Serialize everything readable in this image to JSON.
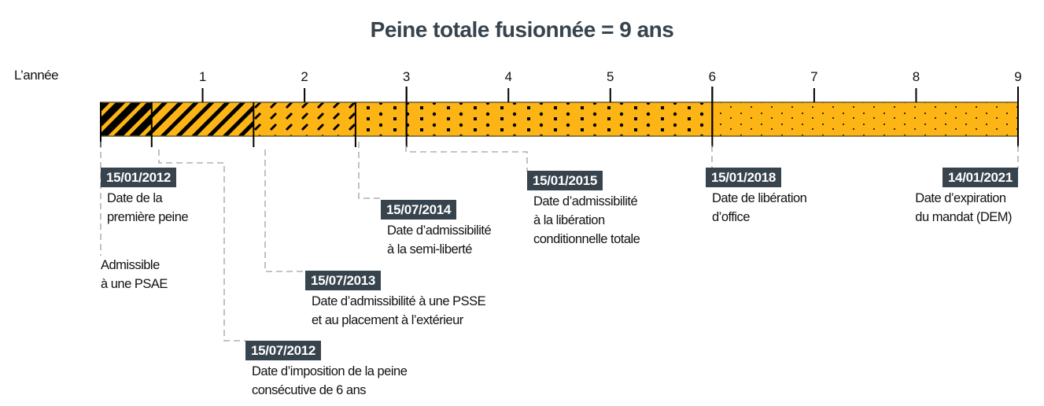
{
  "title": "Peine totale fusionnée = 9 ans",
  "year_axis_label": "L’année",
  "years": [
    "1",
    "2",
    "3",
    "4",
    "5",
    "6",
    "7",
    "8",
    "9"
  ],
  "colors": {
    "bar": "#FDB515",
    "label_box": "#37434D",
    "hatch": "#000000",
    "connector": "#A0A0A0"
  },
  "segments_years": [
    {
      "from": 0,
      "to": 0.5,
      "pattern": "heavy-black-hatch"
    },
    {
      "from": 0.5,
      "to": 1.5,
      "pattern": "diagonal-hatch"
    },
    {
      "from": 1.5,
      "to": 2.5,
      "pattern": "dashes"
    },
    {
      "from": 2.5,
      "to": 6,
      "pattern": "dots-shapes"
    },
    {
      "from": 6,
      "to": 9,
      "pattern": "fine-dots"
    }
  ],
  "events": [
    {
      "date": "15/01/2012",
      "lines": [
        "Date de la",
        "première peine"
      ],
      "extra": [
        "Admissible",
        "à une PSAE"
      ]
    },
    {
      "date": "15/07/2012",
      "lines": [
        "Date d’imposition de la peine",
        "consécutive de 6 ans"
      ]
    },
    {
      "date": "15/07/2013",
      "lines": [
        "Date d’admissibilité à une PSSE",
        "et au placement à l’extérieur"
      ]
    },
    {
      "date": "15/07/2014",
      "lines": [
        "Date d’admissibilité",
        "à la semi-liberté"
      ]
    },
    {
      "date": "15/01/2015",
      "lines": [
        "Date d’admissibilité",
        "à la libération",
        "conditionnelle totale"
      ]
    },
    {
      "date": "15/01/2018",
      "lines": [
        "Date de libération",
        "d’office"
      ]
    },
    {
      "date": "14/01/2021",
      "lines": [
        "Date d’expiration",
        "du mandat (DEM)"
      ]
    }
  ]
}
